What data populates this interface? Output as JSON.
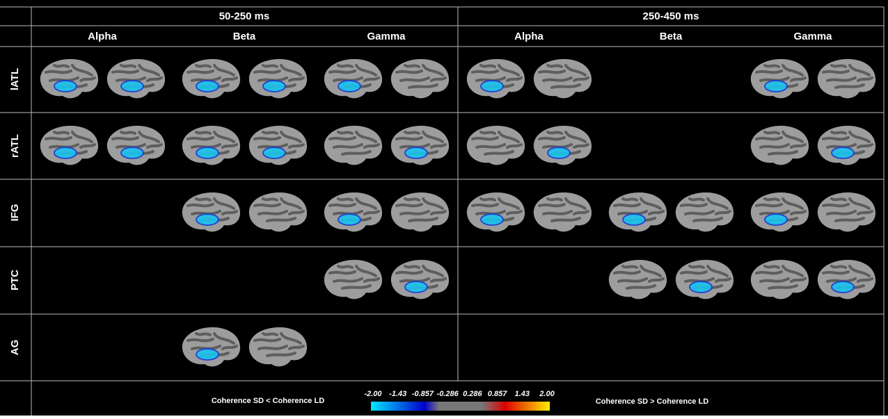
{
  "header": {
    "periods": [
      "50-250 ms",
      "250-450 ms"
    ],
    "bands": [
      "Alpha",
      "Beta",
      "Gamma",
      "Alpha",
      "Beta",
      "Gamma"
    ]
  },
  "rows": [
    "lATL",
    "rATL",
    "IFG",
    "PTC",
    "AG"
  ],
  "colorbar": {
    "left_label": "Coherence SD < Coherence LD",
    "right_label": "Coherence SD > Coherence LD",
    "ticks": [
      "-2.00",
      "-1.43",
      "-0.857",
      "-0.286",
      "0.286",
      "0.857",
      "1.43",
      "2.00"
    ]
  }
}
